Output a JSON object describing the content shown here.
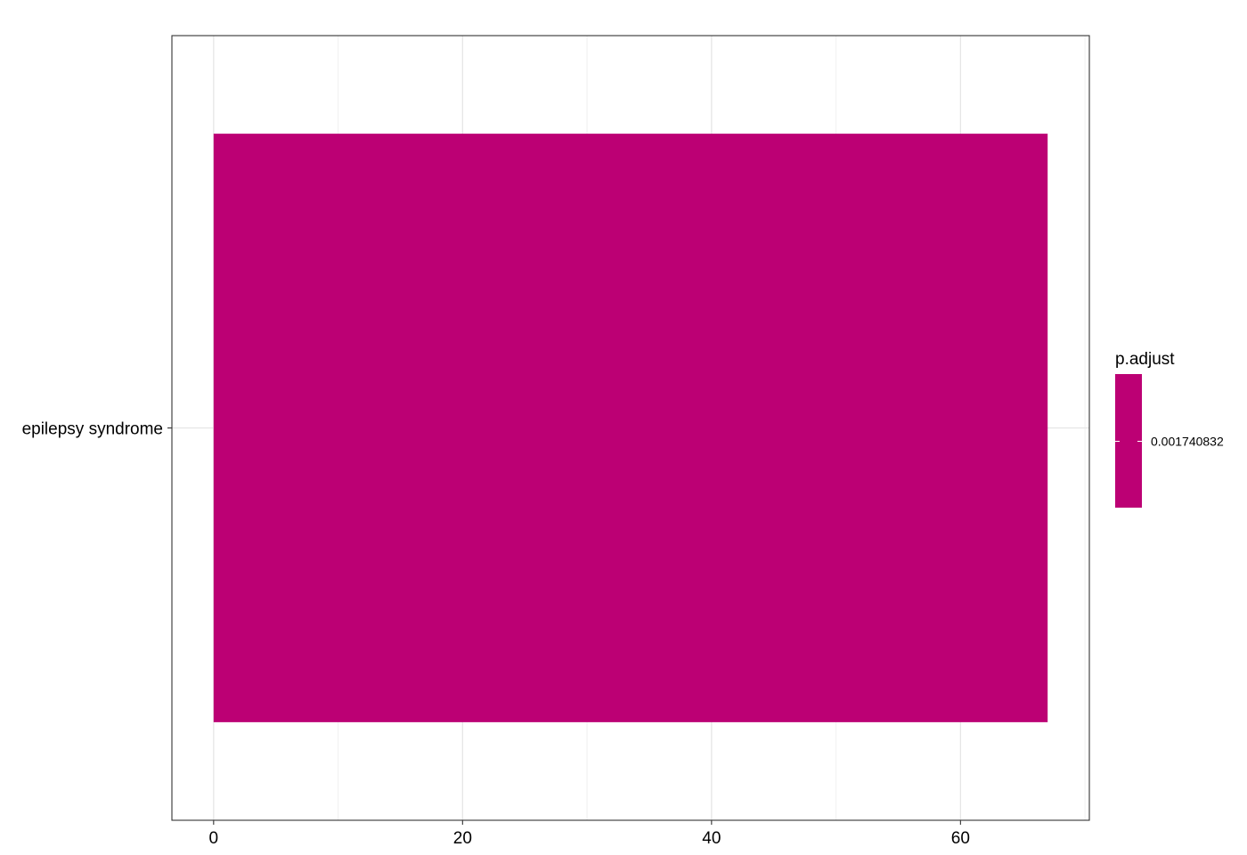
{
  "chart_data": {
    "type": "bar",
    "orientation": "horizontal",
    "categories": [
      "epilepsy syndrome"
    ],
    "values": [
      67
    ],
    "fill_values": [
      0.001740832
    ],
    "xlim": [
      -3.35,
      70.35
    ],
    "x_ticks": [
      0,
      20,
      40,
      60
    ],
    "x_minor_ticks": [
      10,
      30,
      50,
      70
    ],
    "grid": true,
    "bar_color": "#BC0074",
    "legend": {
      "title": "p.adjust",
      "labels": [
        "0.001740832"
      ],
      "placement": "right"
    }
  }
}
